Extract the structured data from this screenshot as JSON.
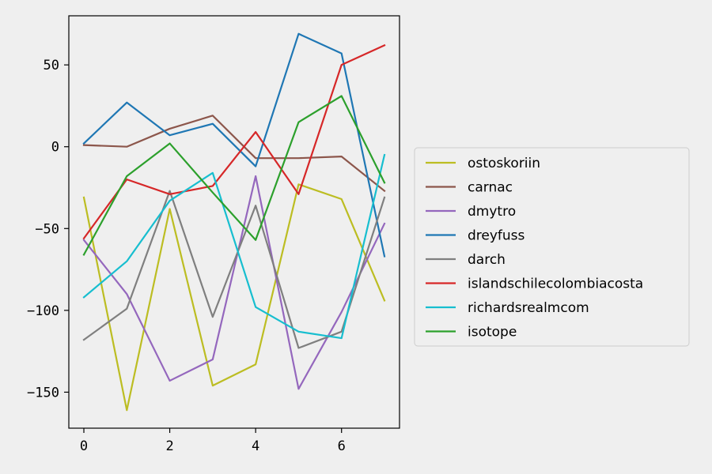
{
  "chart_data": {
    "type": "line",
    "title": "",
    "xlabel": "",
    "ylabel": "",
    "x": [
      0,
      1,
      2,
      3,
      4,
      5,
      6,
      7
    ],
    "xlim": [
      -0.35,
      7.35
    ],
    "ylim": [
      -172,
      80
    ],
    "xticks": [
      0,
      2,
      4,
      6
    ],
    "yticks": [
      50,
      0,
      -50,
      -100,
      -150
    ],
    "xtick_labels": [
      "0",
      "2",
      "4",
      "6"
    ],
    "ytick_labels": [
      "50",
      "0",
      "−50",
      "−100",
      "−150"
    ],
    "grid": false,
    "legend_position": "right",
    "series": [
      {
        "name": "ostoskoriin",
        "color": "#bcbd22",
        "values": [
          -31,
          -161,
          -38,
          -146,
          -133,
          -23,
          -32,
          -94
        ]
      },
      {
        "name": "carnac",
        "color": "#8c564b",
        "values": [
          1,
          0,
          11,
          19,
          -7,
          -7,
          -6,
          -27
        ]
      },
      {
        "name": "dmytro",
        "color": "#9467bd",
        "values": [
          -57,
          -90,
          -143,
          -130,
          -18,
          -148,
          -101,
          -47
        ]
      },
      {
        "name": "dreyfuss",
        "color": "#1f77b4",
        "values": [
          2,
          27,
          7,
          14,
          -12,
          69,
          57,
          -67
        ]
      },
      {
        "name": "darch",
        "color": "#7f7f7f",
        "values": [
          -118,
          -99,
          -27,
          -104,
          -36,
          -123,
          -113,
          -31
        ]
      },
      {
        "name": "islandschilecolombiacosta",
        "color": "#d62728",
        "values": [
          -56,
          -20,
          -29,
          -24,
          9,
          -29,
          50,
          62
        ]
      },
      {
        "name": "richardsrealmcom",
        "color": "#17becf",
        "values": [
          -92,
          -70,
          -33,
          -16,
          -98,
          -113,
          -117,
          -5
        ]
      },
      {
        "name": "isotope",
        "color": "#2ca02c",
        "values": [
          -66,
          -18,
          2,
          -28,
          -57,
          15,
          31,
          -22
        ]
      }
    ]
  }
}
